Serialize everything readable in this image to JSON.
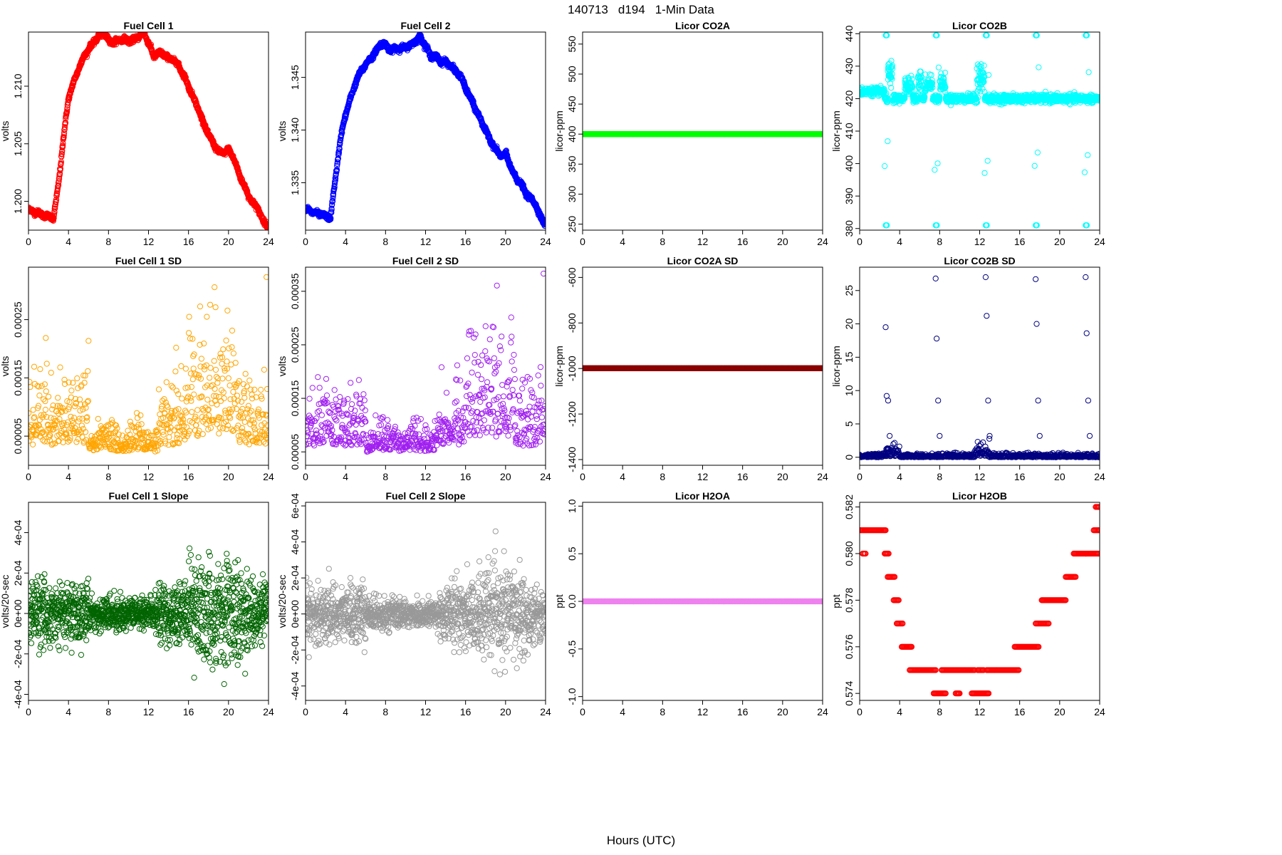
{
  "figure": {
    "title_parts": [
      "140713",
      "d194",
      "1-Min Data"
    ],
    "xlabel": "Hours (UTC)"
  },
  "chart_data": [
    {
      "id": "fc1",
      "type": "scatter",
      "title": "Fuel Cell 1",
      "ylabel": "volts",
      "color": "#ff0000",
      "xlim": [
        0,
        24
      ],
      "ylim": [
        1.1975,
        1.2147
      ],
      "xticks": [
        0,
        4,
        8,
        12,
        16,
        20,
        24
      ],
      "yticks": [
        1.2,
        1.205,
        1.21
      ],
      "ytick_labels": [
        "1.200",
        "1.205",
        "1.210"
      ],
      "pattern": "fc1",
      "x": [
        0,
        0.5,
        1,
        1.5,
        2,
        2.5,
        3,
        3.5,
        4,
        4.5,
        5,
        5.5,
        6,
        6.5,
        7,
        7.5,
        8,
        8.5,
        9,
        9.5,
        10,
        10.5,
        11,
        11.5,
        12,
        12.5,
        13,
        13.5,
        14,
        14.5,
        15,
        15.5,
        16,
        16.5,
        17,
        17.5,
        18,
        18.5,
        19,
        19.5,
        20,
        20.5,
        21,
        21.5,
        22,
        22.5,
        23,
        23.5,
        24
      ],
      "y": [
        1.1993,
        1.1991,
        1.199,
        1.1988,
        1.1987,
        1.1985,
        1.2015,
        1.2055,
        1.209,
        1.2103,
        1.2115,
        1.2125,
        1.2132,
        1.2138,
        1.2143,
        1.2146,
        1.214,
        1.2138,
        1.214,
        1.2141,
        1.2139,
        1.214,
        1.2143,
        1.2147,
        1.2138,
        1.2126,
        1.2129,
        1.2128,
        1.2124,
        1.2123,
        1.2118,
        1.211,
        1.21,
        1.209,
        1.208,
        1.2068,
        1.2058,
        1.205,
        1.2043,
        1.2042,
        1.2045,
        1.2038,
        1.2025,
        1.2015,
        1.2005,
        1.1998,
        1.1993,
        1.1982,
        1.1979
      ]
    },
    {
      "id": "fc2",
      "type": "scatter",
      "title": "Fuel Cell 2",
      "ylabel": "volts",
      "color": "#0000ff",
      "xlim": [
        0,
        24
      ],
      "ylim": [
        1.3305,
        1.3493
      ],
      "xticks": [
        0,
        4,
        8,
        12,
        16,
        20,
        24
      ],
      "yticks": [
        1.335,
        1.34,
        1.345
      ],
      "ytick_labels": [
        "1.335",
        "1.340",
        "1.345"
      ],
      "pattern": "fc2",
      "x": [
        0,
        0.5,
        1,
        1.5,
        2,
        2.5,
        3,
        3.5,
        4,
        4.5,
        5,
        5.5,
        6,
        6.5,
        7,
        7.5,
        8,
        8.5,
        9,
        9.5,
        10,
        10.5,
        11,
        11.5,
        12,
        12.5,
        13,
        13.5,
        14,
        14.5,
        15,
        15.5,
        16,
        16.5,
        17,
        17.5,
        18,
        18.5,
        19,
        19.5,
        20,
        20.5,
        21,
        21.5,
        22,
        22.5,
        23,
        23.5,
        24
      ],
      "y": [
        1.3325,
        1.3323,
        1.3321,
        1.332,
        1.3318,
        1.3317,
        1.3355,
        1.3392,
        1.3415,
        1.343,
        1.3445,
        1.3455,
        1.3462,
        1.3468,
        1.3474,
        1.3482,
        1.3481,
        1.3475,
        1.3478,
        1.3477,
        1.3479,
        1.348,
        1.3485,
        1.3488,
        1.348,
        1.347,
        1.347,
        1.3465,
        1.3465,
        1.3461,
        1.3456,
        1.3451,
        1.344,
        1.343,
        1.342,
        1.341,
        1.34,
        1.339,
        1.3382,
        1.3375,
        1.3378,
        1.3365,
        1.3355,
        1.335,
        1.334,
        1.3335,
        1.333,
        1.3317,
        1.3311
      ]
    },
    {
      "id": "co2a",
      "type": "scatter",
      "title": "Licor CO2A",
      "ylabel": "licor-ppm",
      "color": "#00ff00",
      "xlim": [
        0,
        24
      ],
      "ylim": [
        240,
        570
      ],
      "xticks": [
        0,
        4,
        8,
        12,
        16,
        20,
        24
      ],
      "yticks": [
        250,
        300,
        350,
        400,
        450,
        500,
        550
      ],
      "ytick_labels": [
        "250",
        "300",
        "350",
        "400",
        "450",
        "500",
        "550"
      ],
      "pattern": "const",
      "value": 400
    },
    {
      "id": "co2b",
      "type": "scatter",
      "title": "Licor CO2B",
      "ylabel": "licor-ppm",
      "color": "#00ffff",
      "xlim": [
        0,
        24
      ],
      "ylim": [
        379.5,
        440.5
      ],
      "xticks": [
        0,
        4,
        8,
        12,
        16,
        20,
        24
      ],
      "yticks": [
        380,
        390,
        400,
        410,
        420,
        430,
        440
      ],
      "ytick_labels": [
        "380",
        "390",
        "400",
        "410",
        "420",
        "430",
        "440"
      ],
      "pattern": "co2b",
      "baseline": 420,
      "spike_hours": [
        2.6,
        7.6,
        12.6,
        17.6,
        22.6
      ],
      "spike_high": 439.5,
      "spike_low": 381
    },
    {
      "id": "fc1sd",
      "type": "scatter",
      "title": "Fuel Cell 1 SD",
      "ylabel": "volts",
      "color": "#ffa500",
      "xlim": [
        0,
        24
      ],
      "ylim": [
        0,
        0.00034
      ],
      "xticks": [
        0,
        4,
        8,
        12,
        16,
        20,
        24
      ],
      "yticks": [
        5e-05,
        0.00015,
        0.00025
      ],
      "ytick_labels": [
        "0.00005",
        "0.00015",
        "0.00025"
      ],
      "pattern": "sd",
      "max_point": [
        23.8,
        0.000323
      ]
    },
    {
      "id": "fc2sd",
      "type": "scatter",
      "title": "Fuel Cell 2 SD",
      "ylabel": "volts",
      "color": "#a020f0",
      "xlim": [
        0,
        24
      ],
      "ylim": [
        2.5e-05,
        0.000395
      ],
      "xticks": [
        0,
        4,
        8,
        12,
        16,
        20,
        24
      ],
      "yticks": [
        5e-05,
        0.00015,
        0.00025,
        0.00035
      ],
      "ytick_labels": [
        "0.00005",
        "0.00015",
        "0.00025",
        "0.00035"
      ],
      "pattern": "sd",
      "max_point": [
        23.8,
        0.000383
      ]
    },
    {
      "id": "co2asd",
      "type": "scatter",
      "title": "Licor CO2A SD",
      "ylabel": "licor-ppm",
      "color": "#8b0000",
      "xlim": [
        0,
        24
      ],
      "ylim": [
        -1425,
        -555
      ],
      "xticks": [
        0,
        4,
        8,
        12,
        16,
        20,
        24
      ],
      "yticks": [
        -1400,
        -1200,
        -1000,
        -800,
        -600
      ],
      "ytick_labels": [
        "-1400",
        "-1200",
        "-1000",
        "-800",
        "-600"
      ],
      "pattern": "const",
      "value": -999
    },
    {
      "id": "co2bsd",
      "type": "scatter",
      "title": "Licor CO2B SD",
      "ylabel": "licor-ppm",
      "color": "#000080",
      "xlim": [
        0,
        24
      ],
      "ylim": [
        -1.2,
        28.5
      ],
      "xticks": [
        0,
        4,
        8,
        12,
        16,
        20,
        24
      ],
      "yticks": [
        0,
        5,
        10,
        15,
        20,
        25
      ],
      "ytick_labels": [
        "0",
        "5",
        "10",
        "15",
        "20",
        "25"
      ],
      "pattern": "co2bsd",
      "spike_hours": [
        2.6,
        7.6,
        12.6,
        17.6,
        22.6
      ]
    },
    {
      "id": "fc1slope",
      "type": "scatter",
      "title": "Fuel Cell 1 Slope",
      "ylabel": "volts/20-sec",
      "color": "#006400",
      "xlim": [
        0,
        24
      ],
      "ylim": [
        -0.00043,
        0.00055
      ],
      "xticks": [
        0,
        4,
        8,
        12,
        16,
        20,
        24
      ],
      "yticks": [
        -0.0004,
        -0.0002,
        0,
        0.0002,
        0.0004
      ],
      "ytick_labels": [
        "-4e-04",
        "-2e-04",
        "0e+00",
        "2e-04",
        "4e-04"
      ],
      "pattern": "slope"
    },
    {
      "id": "fc2slope",
      "type": "scatter",
      "title": "Fuel Cell 2 Slope",
      "ylabel": "volts/20-sec",
      "color": "#999999",
      "xlim": [
        0,
        24
      ],
      "ylim": [
        -0.00048,
        0.00062
      ],
      "xticks": [
        0,
        4,
        8,
        12,
        16,
        20,
        24
      ],
      "yticks": [
        -0.0004,
        -0.0002,
        0,
        0.0002,
        0.0004,
        0.0006
      ],
      "ytick_labels": [
        "-4e-04",
        "-2e-04",
        "0e+00",
        "2e-04",
        "4e-04",
        "6e-04"
      ],
      "pattern": "slope"
    },
    {
      "id": "h2oa",
      "type": "scatter",
      "title": "Licor H2OA",
      "ylabel": "ppt",
      "color": "#ee82ee",
      "xlim": [
        0,
        24
      ],
      "ylim": [
        -1.04,
        1.04
      ],
      "xticks": [
        0,
        4,
        8,
        12,
        16,
        20,
        24
      ],
      "yticks": [
        -1.0,
        -0.5,
        0.0,
        0.5,
        1.0
      ],
      "ytick_labels": [
        "-1.0",
        "-0.5",
        "0.0",
        "0.5",
        "1.0"
      ],
      "pattern": "const",
      "value": 0
    },
    {
      "id": "h2ob",
      "type": "scatter",
      "title": "Licor H2OB",
      "ylabel": "ppt",
      "color": "#ff0000",
      "xlim": [
        0,
        24
      ],
      "ylim": [
        0.5737,
        0.5822
      ],
      "xticks": [
        0,
        4,
        8,
        12,
        16,
        20,
        24
      ],
      "yticks": [
        0.574,
        0.576,
        0.578,
        0.58,
        0.582
      ],
      "ytick_labels": [
        "0.574",
        "0.576",
        "0.578",
        "0.580",
        "0.582"
      ],
      "pattern": "h2ob",
      "steps": [
        [
          0,
          2.6,
          0.581
        ],
        [
          0.3,
          0.6,
          0.58
        ],
        [
          2.5,
          2.9,
          0.58
        ],
        [
          2.8,
          3.5,
          0.579
        ],
        [
          3.4,
          3.9,
          0.578
        ],
        [
          3.7,
          4.3,
          0.577
        ],
        [
          4.2,
          5.2,
          0.576
        ],
        [
          5.0,
          7.6,
          0.575
        ],
        [
          7.4,
          8.6,
          0.574
        ],
        [
          8.2,
          11.5,
          0.575
        ],
        [
          9.6,
          10.0,
          0.574
        ],
        [
          11.2,
          12.9,
          0.574
        ],
        [
          11.8,
          12.4,
          0.575
        ],
        [
          12.7,
          15.9,
          0.575
        ],
        [
          15.5,
          17.9,
          0.576
        ],
        [
          17.6,
          18.9,
          0.577
        ],
        [
          18.2,
          20.6,
          0.578
        ],
        [
          20.6,
          21.6,
          0.579
        ],
        [
          21.4,
          23.9,
          0.58
        ],
        [
          23.4,
          24.0,
          0.581
        ],
        [
          23.6,
          24.0,
          0.582
        ]
      ]
    }
  ]
}
